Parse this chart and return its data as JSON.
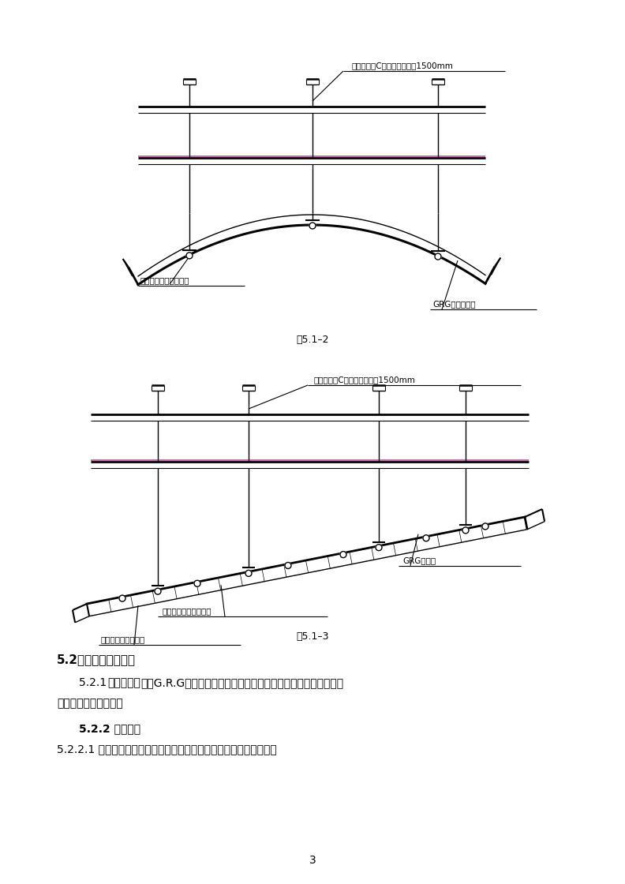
{
  "bg_color": "#ffffff",
  "fig_width": 7.92,
  "fig_height": 11.2,
  "dpi": 100,
  "label1": "工字锂梁或C型锂，间距小于1500mm",
  "label2": "预埋龙骨（厂商提供）",
  "label3": "GRG异型石膏板",
  "caption1": "图5.1–2",
  "label4": "工字锂梁或C型锂，间距小于1500mm",
  "label5": "GRG天花板",
  "label6": "预埋龙骨（厂商提供）",
  "label7": "改性硬鄂密封胶嵌缝",
  "caption2": "图5.1–3",
  "section_title": "5.2、施工准备及工艺",
  "para1_label": "5.2.1 ",
  "para1_bold_key": "技术准备：",
  "para1_normal": "编制G.R.G玻璃纤维增强石膏板专项施工方案，并对工人进行书面",
  "para1_cont": "技术交底和安全交底。",
  "section2": "5.2.2 作业条件",
  "para2": "5.2.2.1 设备安装工程全部完成，并经有关部门验收，达到合格标准。",
  "page_num": "3",
  "line_color": "#000000",
  "text_color": "#000000"
}
